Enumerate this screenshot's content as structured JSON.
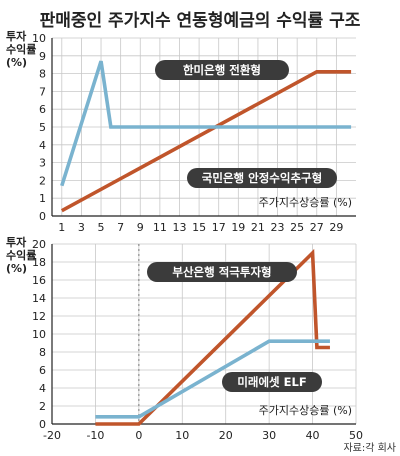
{
  "title": "판매중인 주가지수 연동형예금의 수익률 구조",
  "source": "자료:각 회사",
  "colors": {
    "series_red": "#c0552b",
    "series_blue": "#7ab3cf",
    "label_bg": "#3b3b3b",
    "label_text": "#ffffff",
    "axis": "#222222",
    "grid": "#c8c8c8"
  },
  "chart_data": [
    {
      "type": "line",
      "ylabel": "투자\n수익률\n(%)",
      "xlabel": "주가지수상승률 (%)",
      "xlim": [
        0,
        31
      ],
      "ylim": [
        0,
        10
      ],
      "xticks": [
        1,
        3,
        5,
        7,
        9,
        11,
        13,
        15,
        17,
        19,
        21,
        23,
        25,
        27,
        29
      ],
      "yticks": [
        0,
        1,
        2,
        3,
        4,
        5,
        6,
        7,
        8,
        9,
        10
      ],
      "grid": true,
      "series": [
        {
          "name": "한미은행 전환형",
          "color": "#c0552b",
          "x": [
            1,
            27,
            30.5
          ],
          "y": [
            0.3,
            8.1,
            8.1
          ]
        },
        {
          "name": "국민은행 안정수익추구형",
          "color": "#7ab3cf",
          "x": [
            1,
            5,
            6,
            30.5
          ],
          "y": [
            1.7,
            8.7,
            5.0,
            5.0
          ]
        }
      ],
      "labels": [
        {
          "text": "한미은행 전환형",
          "series": 0
        },
        {
          "text": "국민은행 안정수익추구형",
          "series": 1
        }
      ]
    },
    {
      "type": "line",
      "ylabel": "투자\n수익률\n(%)",
      "xlabel": "주가지수상승률 (%)",
      "xlim": [
        -20,
        50
      ],
      "ylim": [
        0,
        20
      ],
      "xticks": [
        -20,
        -10,
        0,
        10,
        20,
        30,
        40,
        50
      ],
      "yticks": [
        0,
        2,
        4,
        6,
        8,
        10,
        12,
        14,
        16,
        18,
        20
      ],
      "zero_line": true,
      "grid": true,
      "series": [
        {
          "name": "부산은행 적극투자형",
          "color": "#c0552b",
          "x": [
            -10,
            0,
            40,
            41,
            44
          ],
          "y": [
            0,
            0,
            19,
            8.5,
            8.5
          ]
        },
        {
          "name": "미래에셋 ELF",
          "color": "#7ab3cf",
          "x": [
            -10,
            0,
            30,
            44
          ],
          "y": [
            0.8,
            0.8,
            9.2,
            9.2
          ]
        }
      ],
      "labels": [
        {
          "text": "부산은행 적극투자형",
          "series": 0
        },
        {
          "text": "미래에셋 ELF",
          "series": 1
        }
      ]
    }
  ]
}
